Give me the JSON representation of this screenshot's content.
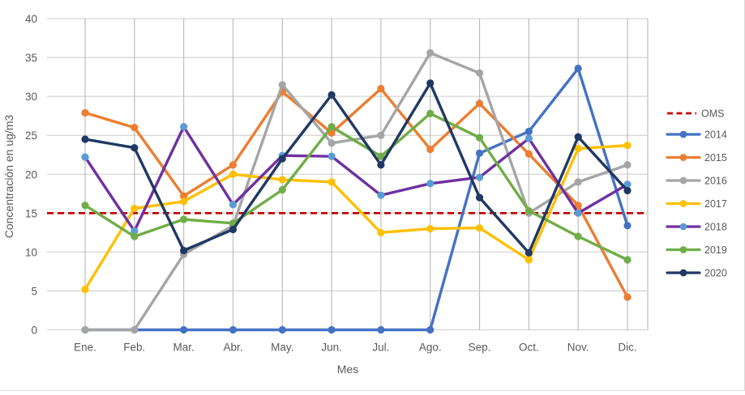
{
  "chart_data": {
    "type": "line",
    "title": "",
    "xlabel": "Mes",
    "ylabel": "Concentración en ug/m3",
    "ylim": [
      0,
      40
    ],
    "ytick_step": 5,
    "grid": true,
    "legend_position": "right",
    "categories": [
      "Ene.",
      "Feb.",
      "Mar.",
      "Abr.",
      "May.",
      "Jun.",
      "Jul.",
      "Ago.",
      "Sep.",
      "Oct.",
      "Nov.",
      "Dic."
    ],
    "reference_line": {
      "label": "OMS",
      "value": 15,
      "color": "#C00000",
      "style": "dashed"
    },
    "series": [
      {
        "name": "2014",
        "color": "#4472C4",
        "marker_color": "#4472C4",
        "values": [
          0,
          0,
          0,
          0,
          0,
          0,
          0,
          0,
          22.7,
          25.5,
          33.6,
          13.4
        ]
      },
      {
        "name": "2015",
        "color": "#ED7D31",
        "marker_color": "#ED7D31",
        "values": [
          27.9,
          26.0,
          17.2,
          21.2,
          30.6,
          25.3,
          31.0,
          23.2,
          29.1,
          22.6,
          16.0,
          4.2
        ]
      },
      {
        "name": "2016",
        "color": "#A5A5A5",
        "marker_color": "#A5A5A5",
        "values": [
          0,
          0,
          9.7,
          13.4,
          31.5,
          24.0,
          25.0,
          35.6,
          33.0,
          15.0,
          19.0,
          21.2
        ]
      },
      {
        "name": "2017",
        "color": "#FFC000",
        "marker_color": "#FFC000",
        "values": [
          5.2,
          15.6,
          16.5,
          20.0,
          19.3,
          19.0,
          12.5,
          13.0,
          13.1,
          9.0,
          23.3,
          23.7
        ]
      },
      {
        "name": "2018",
        "color": "#7030A0",
        "marker_color": "#5B9BD5",
        "values": [
          22.2,
          12.7,
          26.1,
          16.1,
          22.4,
          22.3,
          17.3,
          18.8,
          19.6,
          24.6,
          15.0,
          18.7
        ]
      },
      {
        "name": "2019",
        "color": "#70AD47",
        "marker_color": "#70AD47",
        "values": [
          16.0,
          12.0,
          14.2,
          13.7,
          18.0,
          26.1,
          22.3,
          27.8,
          24.7,
          15.3,
          12.0,
          9.0
        ]
      },
      {
        "name": "2020",
        "color": "#203864",
        "marker_color": "#203864",
        "values": [
          24.5,
          23.4,
          10.2,
          12.9,
          22.0,
          30.2,
          21.2,
          31.7,
          17.0,
          9.9,
          24.8,
          17.9
        ]
      }
    ]
  },
  "style_colors": {
    "horizontal_gridline": "#D6D6D6",
    "vertical_gridline": "#BDBDBD",
    "axis_text": "#595959",
    "background": "#FFFFFF"
  }
}
